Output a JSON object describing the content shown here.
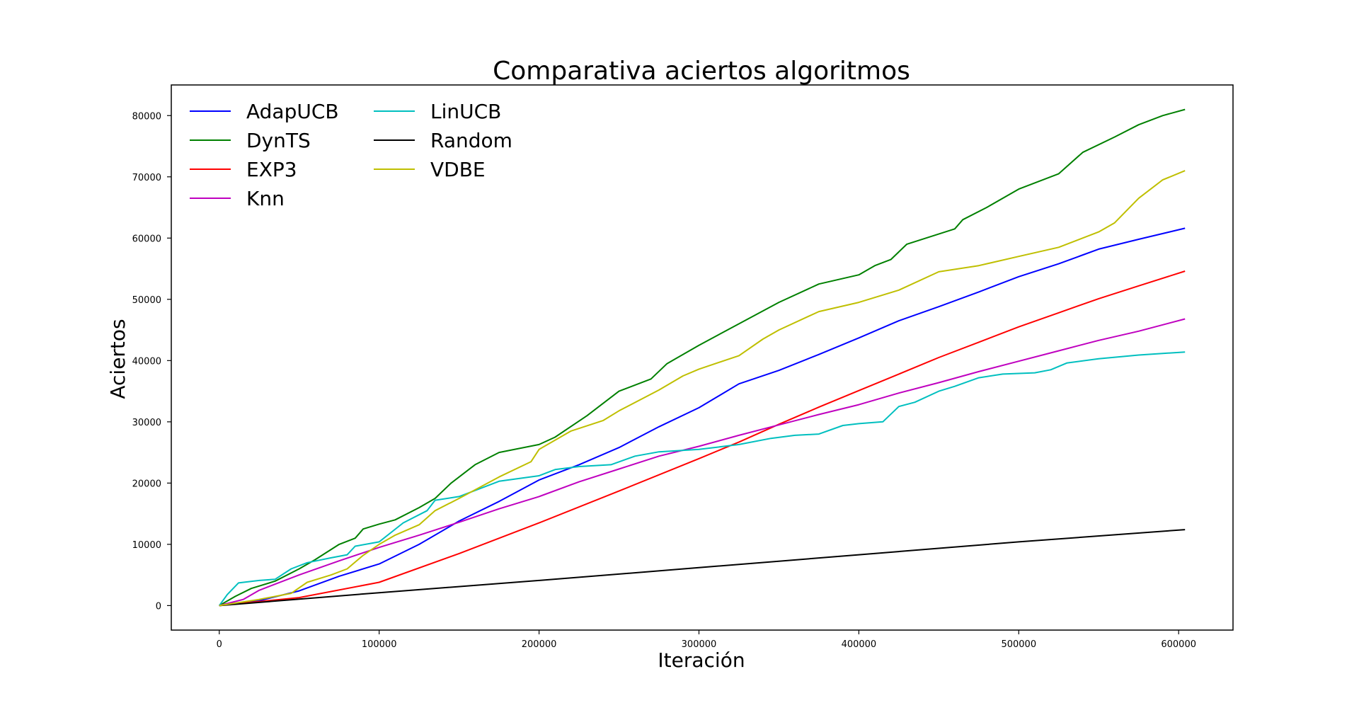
{
  "chart_data": {
    "type": "line",
    "title": "Comparativa aciertos algoritmos",
    "xlabel": "Iteración",
    "ylabel": "Aciertos",
    "xlim": [
      -30000,
      634000
    ],
    "ylim": [
      -4000,
      85000
    ],
    "xticks": [
      0,
      100000,
      200000,
      300000,
      400000,
      500000,
      600000
    ],
    "yticks": [
      0,
      10000,
      20000,
      30000,
      40000,
      50000,
      60000,
      70000,
      80000
    ],
    "grid": false,
    "legend_position": "top-left",
    "series": [
      {
        "name": "AdapUCB",
        "color": "#0000ff",
        "points": [
          [
            0,
            0
          ],
          [
            25000,
            800
          ],
          [
            50000,
            2400
          ],
          [
            75000,
            4800
          ],
          [
            100000,
            6800
          ],
          [
            125000,
            10000
          ],
          [
            150000,
            13800
          ],
          [
            175000,
            17000
          ],
          [
            200000,
            20500
          ],
          [
            225000,
            23000
          ],
          [
            250000,
            25800
          ],
          [
            275000,
            29200
          ],
          [
            300000,
            32300
          ],
          [
            325000,
            36200
          ],
          [
            350000,
            38400
          ],
          [
            375000,
            41000
          ],
          [
            400000,
            43700
          ],
          [
            425000,
            46500
          ],
          [
            450000,
            48800
          ],
          [
            475000,
            51200
          ],
          [
            500000,
            53700
          ],
          [
            525000,
            55800
          ],
          [
            550000,
            58200
          ],
          [
            575000,
            59800
          ],
          [
            604000,
            61600
          ]
        ]
      },
      {
        "name": "DynTS",
        "color": "#008000",
        "points": [
          [
            0,
            0
          ],
          [
            10000,
            1500
          ],
          [
            20000,
            2800
          ],
          [
            35000,
            4000
          ],
          [
            50000,
            6000
          ],
          [
            60000,
            7500
          ],
          [
            75000,
            10000
          ],
          [
            85000,
            11000
          ],
          [
            90000,
            12500
          ],
          [
            100000,
            13300
          ],
          [
            110000,
            14000
          ],
          [
            125000,
            16000
          ],
          [
            135000,
            17500
          ],
          [
            145000,
            20000
          ],
          [
            155000,
            22000
          ],
          [
            160000,
            23000
          ],
          [
            175000,
            25000
          ],
          [
            200000,
            26300
          ],
          [
            210000,
            27500
          ],
          [
            230000,
            31000
          ],
          [
            250000,
            35000
          ],
          [
            270000,
            37000
          ],
          [
            280000,
            39500
          ],
          [
            300000,
            42500
          ],
          [
            325000,
            46000
          ],
          [
            350000,
            49500
          ],
          [
            375000,
            52500
          ],
          [
            400000,
            54000
          ],
          [
            410000,
            55500
          ],
          [
            420000,
            56500
          ],
          [
            430000,
            59000
          ],
          [
            460000,
            61500
          ],
          [
            465000,
            63000
          ],
          [
            480000,
            65000
          ],
          [
            500000,
            68000
          ],
          [
            525000,
            70500
          ],
          [
            540000,
            74000
          ],
          [
            560000,
            76500
          ],
          [
            575000,
            78500
          ],
          [
            590000,
            80000
          ],
          [
            604000,
            81000
          ]
        ]
      },
      {
        "name": "EXP3",
        "color": "#ff0000",
        "points": [
          [
            0,
            0
          ],
          [
            50000,
            1300
          ],
          [
            100000,
            3800
          ],
          [
            150000,
            8500
          ],
          [
            200000,
            13500
          ],
          [
            250000,
            18700
          ],
          [
            300000,
            24000
          ],
          [
            325000,
            26700
          ],
          [
            350000,
            29600
          ],
          [
            375000,
            32400
          ],
          [
            400000,
            35100
          ],
          [
            425000,
            37800
          ],
          [
            450000,
            40500
          ],
          [
            475000,
            43000
          ],
          [
            500000,
            45500
          ],
          [
            525000,
            47800
          ],
          [
            550000,
            50100
          ],
          [
            575000,
            52200
          ],
          [
            604000,
            54600
          ]
        ]
      },
      {
        "name": "Knn",
        "color": "#bf00bf",
        "points": [
          [
            0,
            0
          ],
          [
            15000,
            1000
          ],
          [
            25000,
            2500
          ],
          [
            50000,
            5000
          ],
          [
            75000,
            7300
          ],
          [
            100000,
            9500
          ],
          [
            125000,
            11500
          ],
          [
            150000,
            13600
          ],
          [
            175000,
            15800
          ],
          [
            200000,
            17800
          ],
          [
            225000,
            20200
          ],
          [
            250000,
            22300
          ],
          [
            275000,
            24400
          ],
          [
            300000,
            26000
          ],
          [
            325000,
            27800
          ],
          [
            350000,
            29500
          ],
          [
            375000,
            31200
          ],
          [
            400000,
            32800
          ],
          [
            425000,
            34700
          ],
          [
            450000,
            36400
          ],
          [
            475000,
            38200
          ],
          [
            500000,
            39900
          ],
          [
            525000,
            41600
          ],
          [
            550000,
            43300
          ],
          [
            575000,
            44800
          ],
          [
            604000,
            46800
          ]
        ]
      },
      {
        "name": "LinUCB",
        "color": "#00bfbf",
        "points": [
          [
            0,
            0
          ],
          [
            5000,
            1800
          ],
          [
            12000,
            3700
          ],
          [
            25000,
            4100
          ],
          [
            35000,
            4300
          ],
          [
            45000,
            6000
          ],
          [
            55000,
            7000
          ],
          [
            70000,
            7800
          ],
          [
            80000,
            8300
          ],
          [
            85000,
            9700
          ],
          [
            100000,
            10400
          ],
          [
            115000,
            13500
          ],
          [
            130000,
            15500
          ],
          [
            135000,
            17200
          ],
          [
            150000,
            17800
          ],
          [
            175000,
            20300
          ],
          [
            200000,
            21200
          ],
          [
            210000,
            22200
          ],
          [
            225000,
            22700
          ],
          [
            245000,
            23000
          ],
          [
            260000,
            24400
          ],
          [
            275000,
            25100
          ],
          [
            300000,
            25500
          ],
          [
            325000,
            26300
          ],
          [
            345000,
            27300
          ],
          [
            360000,
            27800
          ],
          [
            375000,
            28000
          ],
          [
            390000,
            29400
          ],
          [
            400000,
            29700
          ],
          [
            415000,
            30000
          ],
          [
            425000,
            32500
          ],
          [
            435000,
            33200
          ],
          [
            450000,
            35000
          ],
          [
            460000,
            35800
          ],
          [
            475000,
            37200
          ],
          [
            490000,
            37800
          ],
          [
            510000,
            38000
          ],
          [
            520000,
            38500
          ],
          [
            530000,
            39600
          ],
          [
            550000,
            40300
          ],
          [
            575000,
            40900
          ],
          [
            604000,
            41400
          ]
        ]
      },
      {
        "name": "Random",
        "color": "#000000",
        "points": [
          [
            0,
            0
          ],
          [
            100000,
            2100
          ],
          [
            200000,
            4100
          ],
          [
            300000,
            6200
          ],
          [
            400000,
            8300
          ],
          [
            500000,
            10400
          ],
          [
            604000,
            12400
          ]
        ]
      },
      {
        "name": "VDBE",
        "color": "#bfbf00",
        "points": [
          [
            0,
            0
          ],
          [
            25000,
            1000
          ],
          [
            45000,
            2000
          ],
          [
            55000,
            3800
          ],
          [
            70000,
            5000
          ],
          [
            80000,
            6000
          ],
          [
            90000,
            8200
          ],
          [
            100000,
            10000
          ],
          [
            110000,
            11500
          ],
          [
            125000,
            13200
          ],
          [
            135000,
            15500
          ],
          [
            150000,
            17500
          ],
          [
            175000,
            21000
          ],
          [
            195000,
            23500
          ],
          [
            200000,
            25500
          ],
          [
            220000,
            28500
          ],
          [
            240000,
            30200
          ],
          [
            250000,
            31800
          ],
          [
            275000,
            35200
          ],
          [
            290000,
            37500
          ],
          [
            300000,
            38600
          ],
          [
            325000,
            40800
          ],
          [
            340000,
            43500
          ],
          [
            350000,
            45000
          ],
          [
            375000,
            48000
          ],
          [
            400000,
            49500
          ],
          [
            425000,
            51500
          ],
          [
            450000,
            54500
          ],
          [
            475000,
            55500
          ],
          [
            500000,
            57000
          ],
          [
            525000,
            58500
          ],
          [
            550000,
            61000
          ],
          [
            560000,
            62500
          ],
          [
            575000,
            66500
          ],
          [
            590000,
            69500
          ],
          [
            604000,
            71000
          ]
        ]
      }
    ]
  }
}
